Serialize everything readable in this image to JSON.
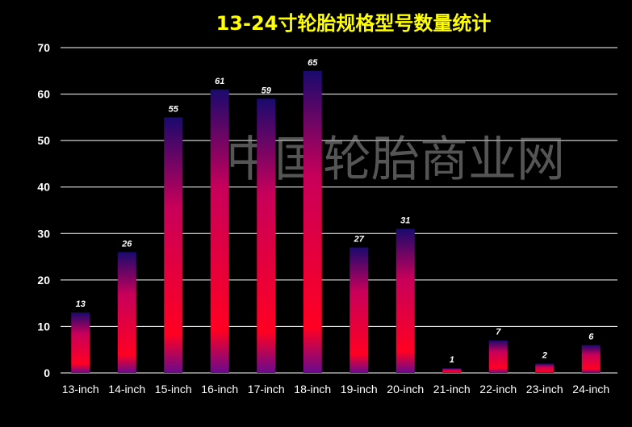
{
  "chart_data": {
    "type": "bar",
    "title": "13-24寸轮胎规格型号数量统计",
    "categories": [
      "13-inch",
      "14-inch",
      "15-inch",
      "16-inch",
      "17-inch",
      "18-inch",
      "19-inch",
      "20-inch",
      "21-inch",
      "22-inch",
      "23-inch",
      "24-inch"
    ],
    "values": [
      13,
      26,
      55,
      61,
      59,
      65,
      27,
      31,
      1,
      7,
      2,
      6
    ],
    "xlabel": "",
    "ylabel": "",
    "ylim": [
      0,
      70
    ],
    "yticks": [
      0,
      10,
      20,
      30,
      40,
      50,
      60,
      70
    ],
    "grid": true,
    "legend": "none",
    "colors": {
      "background": "#000000",
      "title": "#ffff00",
      "text": "#ffffff",
      "grid": "#ffffff",
      "bar_top": "#1a0a6e",
      "bar_mid": "#c8005a",
      "bar_bottom": "#ff0022"
    }
  },
  "watermark": "中国轮胎商业网"
}
